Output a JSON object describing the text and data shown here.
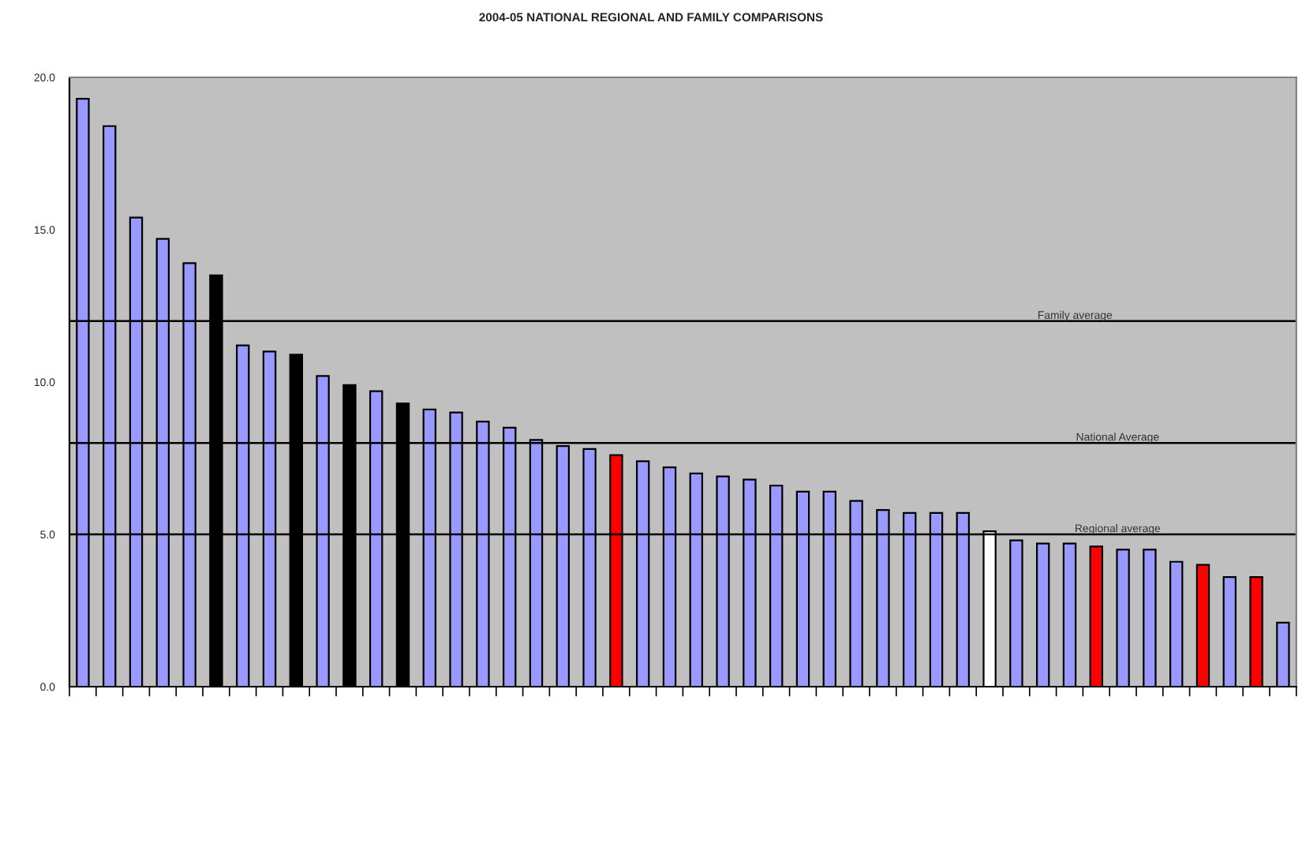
{
  "chart_data": {
    "type": "bar",
    "title": "2004-05 NATIONAL REGIONAL AND FAMILY COMPARISONS",
    "categories": [
      null,
      null,
      null,
      null,
      null,
      null,
      null,
      null,
      null,
      null,
      null,
      null,
      null,
      null,
      null,
      null,
      null,
      null,
      null,
      null,
      null,
      null,
      null,
      null,
      null,
      null,
      null,
      null,
      null,
      null,
      null,
      null,
      null,
      null,
      null,
      null,
      null,
      null,
      null,
      null,
      null,
      null,
      null,
      null,
      null,
      null
    ],
    "values": [
      19.3,
      18.4,
      15.4,
      14.7,
      13.9,
      13.5,
      11.2,
      11.0,
      10.9,
      10.2,
      9.9,
      9.7,
      9.3,
      9.1,
      9.0,
      8.7,
      8.5,
      8.1,
      7.9,
      7.8,
      7.6,
      7.4,
      7.2,
      7.0,
      6.9,
      6.8,
      6.6,
      6.4,
      6.4,
      6.1,
      5.8,
      5.7,
      5.7,
      5.7,
      5.1,
      4.8,
      4.7,
      4.7,
      4.6,
      4.5,
      4.5,
      4.1,
      4.0,
      3.6,
      3.6,
      2.1
    ],
    "colors": [
      "#9999ff",
      "#9999ff",
      "#9999ff",
      "#9999ff",
      "#9999ff",
      "#000000",
      "#9999ff",
      "#9999ff",
      "#000000",
      "#9999ff",
      "#000000",
      "#9999ff",
      "#000000",
      "#9999ff",
      "#9999ff",
      "#9999ff",
      "#9999ff",
      "#9999ff",
      "#9999ff",
      "#9999ff",
      "#ff0000",
      "#9999ff",
      "#9999ff",
      "#9999ff",
      "#9999ff",
      "#9999ff",
      "#9999ff",
      "#9999ff",
      "#9999ff",
      "#9999ff",
      "#9999ff",
      "#9999ff",
      "#9999ff",
      "#9999ff",
      "#ffffff",
      "#9999ff",
      "#9999ff",
      "#9999ff",
      "#ff0000",
      "#9999ff",
      "#9999ff",
      "#9999ff",
      "#ff0000",
      "#9999ff",
      "#ff0000",
      "#9999ff"
    ],
    "ylim": [
      0,
      20
    ],
    "yticks": [
      {
        "value": 0,
        "label": "0.0"
      },
      {
        "value": 5,
        "label": "5.0"
      },
      {
        "value": 10,
        "label": "10.0"
      },
      {
        "value": 15,
        "label": "15.0"
      },
      {
        "value": 20,
        "label": "20.0"
      }
    ],
    "ref_lines": [
      {
        "axis": "y",
        "value": 12,
        "label": "Family average",
        "color": "#000000"
      },
      {
        "axis": "y",
        "value": 8,
        "label": "National Average",
        "color": "#000000"
      },
      {
        "axis": "y",
        "value": 5,
        "label": "Regional average",
        "color": "#000000"
      }
    ],
    "grid": false,
    "legend": false
  }
}
